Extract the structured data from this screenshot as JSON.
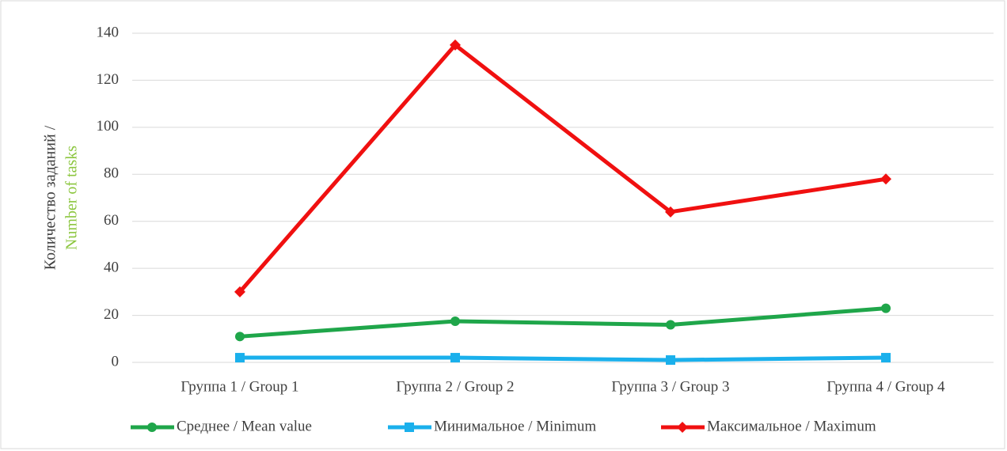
{
  "chart_data": {
    "type": "line",
    "ylabel": [
      "Количество заданий /",
      "Number of tasks"
    ],
    "categories": [
      "Группа 1 / Group 1",
      "Группа 2 / Group 2",
      "Группа 3 / Group 3",
      "Группа 4 / Group 4"
    ],
    "series": [
      {
        "name": "Среднее / Mean value",
        "color": "#1fa64a",
        "marker": "circle",
        "values": [
          11,
          17.5,
          16,
          23
        ]
      },
      {
        "name": "Минимальное / Minimum",
        "color": "#1ab0ec",
        "marker": "square",
        "values": [
          2,
          2,
          1,
          2
        ]
      },
      {
        "name": "Максимальное / Maximum",
        "color": "#f01010",
        "marker": "diamond",
        "values": [
          30,
          135,
          64,
          78
        ]
      }
    ],
    "ylim": [
      0,
      140
    ],
    "yticks": [
      0,
      20,
      40,
      60,
      80,
      100,
      120,
      140
    ],
    "grid": true,
    "legend": "bottom"
  }
}
